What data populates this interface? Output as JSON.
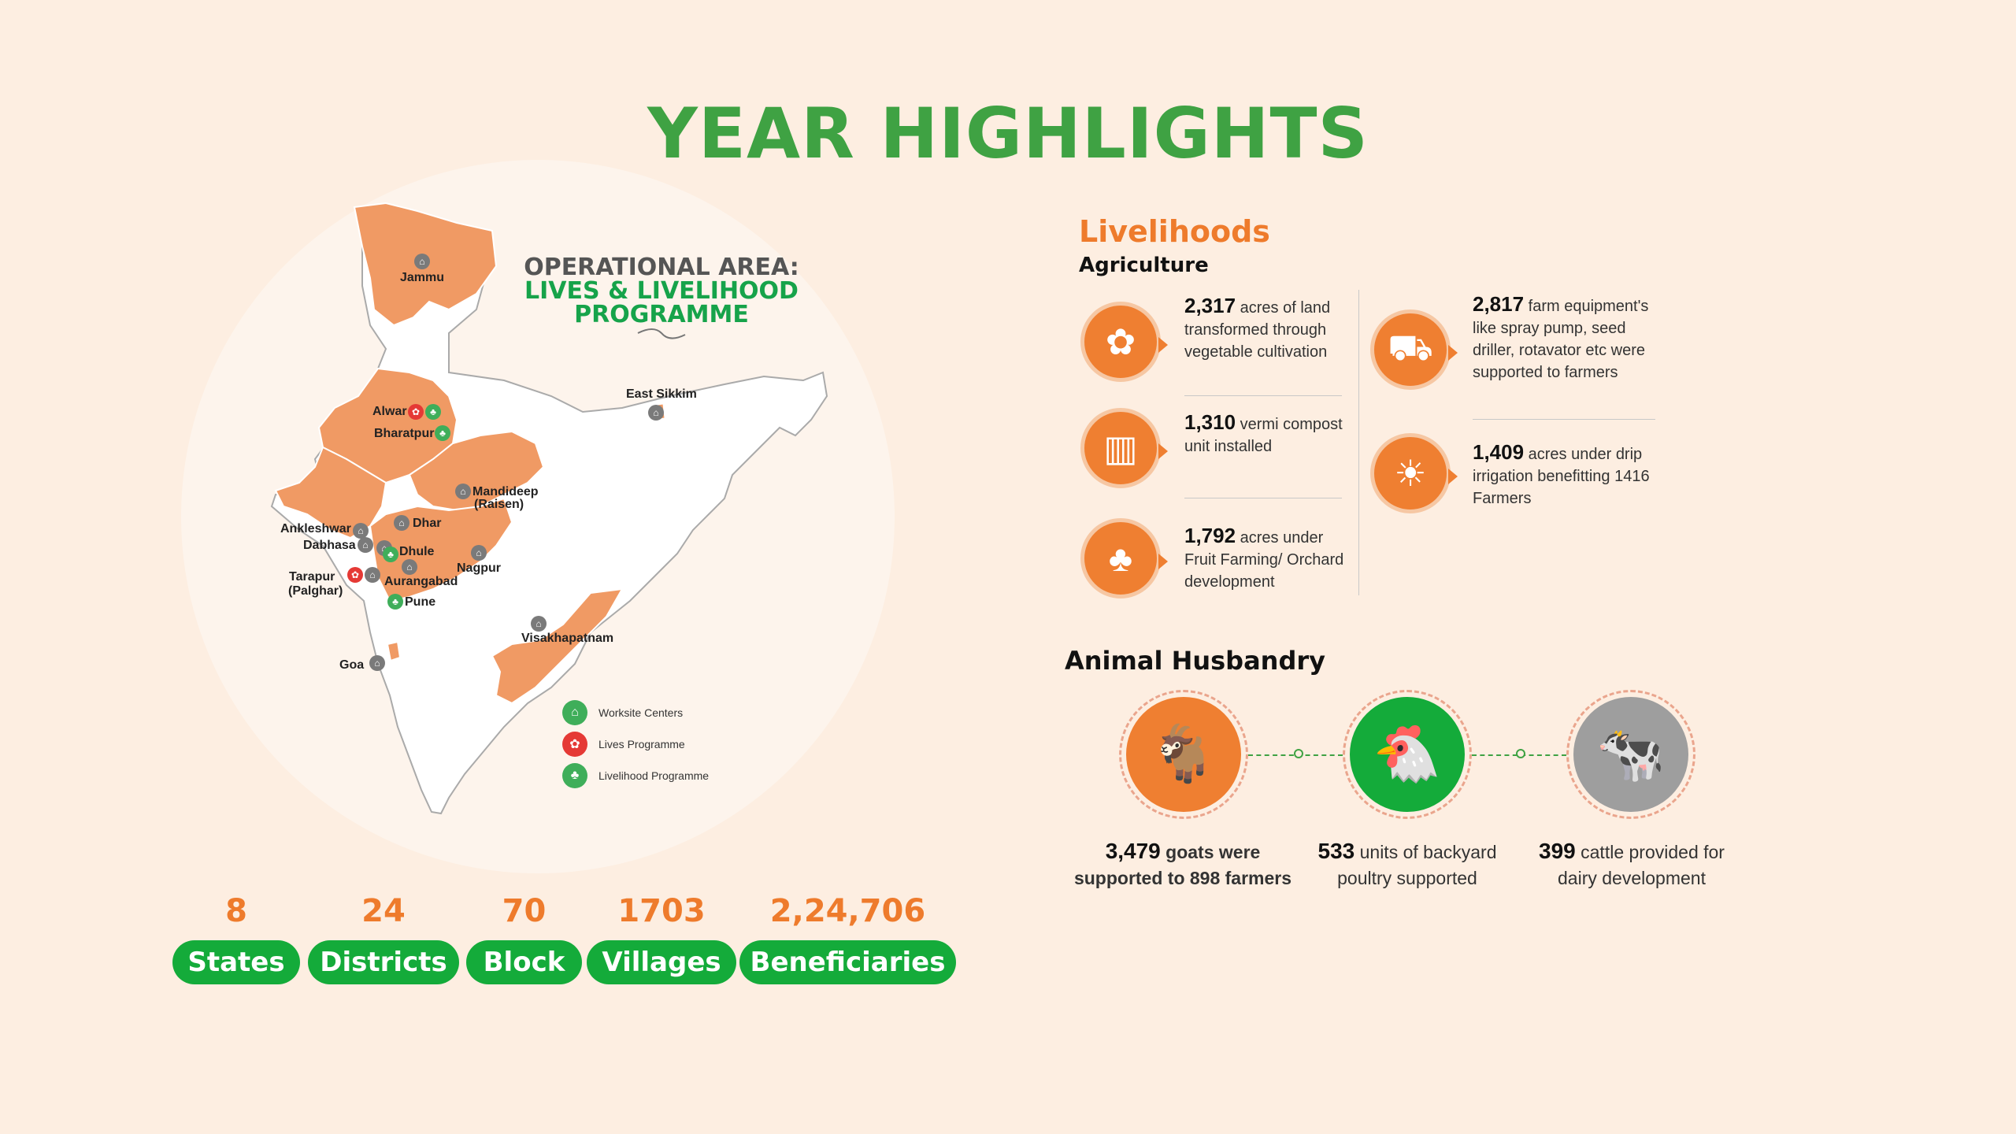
{
  "title": "YEAR HIGHLIGHTS",
  "map": {
    "heading_line1": "OPERATIONAL AREA:",
    "heading_line2": "LIVES & LIVELIHOOD",
    "heading_line3": "PROGRAMME",
    "locations": {
      "jammu": "Jammu",
      "east_sikkim": "East Sikkim",
      "alwar": "Alwar",
      "bharatpur": "Bharatpur",
      "mandideep": "Mandideep",
      "raisen": "(Raisen)",
      "ankleshwar": "Ankleshwar",
      "dabhasa": "Dabhasa",
      "dhar": "Dhar",
      "dhule": "Dhule",
      "tarapur": "Tarapur",
      "palghar": "(Palghar)",
      "aurangabad": "Aurangabad",
      "nagpur": "Nagpur",
      "pune": "Pune",
      "visakhapatnam": "Visakhapatnam",
      "goa": "Goa"
    },
    "legend": {
      "worksite": "Worksite Centers",
      "lives": "Lives Programme",
      "livelihood": "Livelihood Programme"
    },
    "colors": {
      "highlight_state": "#f09a64",
      "worksite": "#7a7a7a",
      "lives": "#e53935",
      "livelihood": "#3fae5a"
    }
  },
  "stats": [
    {
      "value": "8",
      "label": "States"
    },
    {
      "value": "24",
      "label": "Districts"
    },
    {
      "value": "70",
      "label": "Block"
    },
    {
      "value": "1703",
      "label": "Villages"
    },
    {
      "value": "2,24,706",
      "label": "Beneficiaries"
    }
  ],
  "livelihoods": {
    "title": "Livelihoods",
    "subtitle": "Agriculture",
    "items": [
      {
        "value": "2,317",
        "text": "acres of land transformed through vegetable cultivation",
        "icon": "vegetable-icon"
      },
      {
        "value": "1,310",
        "text": "vermi compost unit installed",
        "icon": "compost-icon"
      },
      {
        "value": "1,792",
        "text": "acres under Fruit Farming/ Orchard development",
        "icon": "tree-icon"
      },
      {
        "value": "2,817",
        "text": "farm equipment's like spray pump, seed driller, rotavator etc were supported to farmers",
        "icon": "tractor-icon"
      },
      {
        "value": "1,409",
        "text": "acres under drip irrigation benefitting 1416 Farmers",
        "icon": "irrigation-icon"
      }
    ]
  },
  "animal_husbandry": {
    "title": "Animal Husbandry",
    "items": [
      {
        "value": "3,479",
        "text": "goats were supported to 898 farmers",
        "icon": "goat-icon",
        "color": "#ef7f31"
      },
      {
        "value": "533",
        "text": "units of backyard poultry supported",
        "icon": "poultry-icon",
        "color": "#14ab3a"
      },
      {
        "value": "399",
        "text": "cattle provided for dairy development",
        "icon": "cattle-icon",
        "color": "#9e9e9e"
      }
    ]
  }
}
